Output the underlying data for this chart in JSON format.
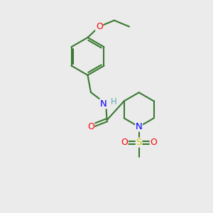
{
  "background_color": "#ebebeb",
  "bond_color": "#3a7a32",
  "bond_width": 1.5,
  "atom_colors": {
    "O": "#ff0000",
    "N": "#0000ff",
    "S": "#cccc00",
    "C": "#3a7a32",
    "H": "#5aadad"
  },
  "fig_size": [
    3.0,
    3.0
  ],
  "dpi": 100
}
